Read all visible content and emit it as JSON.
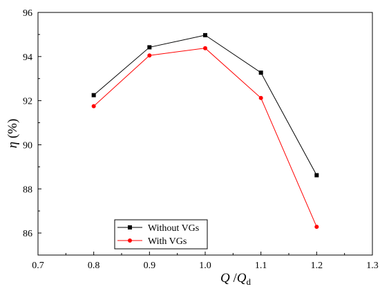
{
  "chart_data": {
    "type": "line",
    "xlabel": {
      "main": "Q",
      "sep": " /",
      "sub_base": "Q",
      "sub": "d"
    },
    "ylabel": {
      "main": "η",
      "unit": " (%)"
    },
    "xlim": [
      0.7,
      1.3
    ],
    "ylim": [
      85,
      96
    ],
    "xticks": [
      0.7,
      0.8,
      0.9,
      1.0,
      1.1,
      1.2,
      1.3
    ],
    "xtick_labels": [
      "0.7",
      "0.8",
      "0.9",
      "1.0",
      "1.1",
      "1.2",
      "1.3"
    ],
    "yticks": [
      86,
      88,
      90,
      92,
      94,
      96
    ],
    "ytick_labels": [
      "86",
      "88",
      "90",
      "92",
      "94",
      "96"
    ],
    "grid": false,
    "legend_position": "bottom-left",
    "x": [
      0.8,
      0.9,
      1.0,
      1.1,
      1.2
    ],
    "series": [
      {
        "name": "Without VGs",
        "values": [
          92.25,
          94.42,
          94.97,
          93.27,
          88.62
        ],
        "color": "#000000",
        "marker": "square"
      },
      {
        "name": "With VGs",
        "values": [
          91.75,
          94.05,
          94.38,
          92.12,
          86.28
        ],
        "color": "#ff0000",
        "marker": "circle"
      }
    ]
  }
}
